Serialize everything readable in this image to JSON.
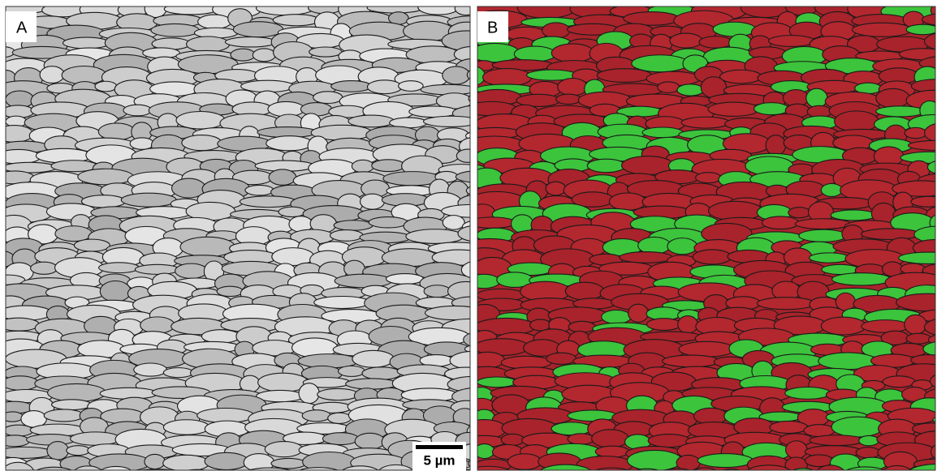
{
  "panels": [
    {
      "label": "A"
    },
    {
      "label": "B"
    }
  ],
  "scale_bar": {
    "label": "5 µm"
  }
}
